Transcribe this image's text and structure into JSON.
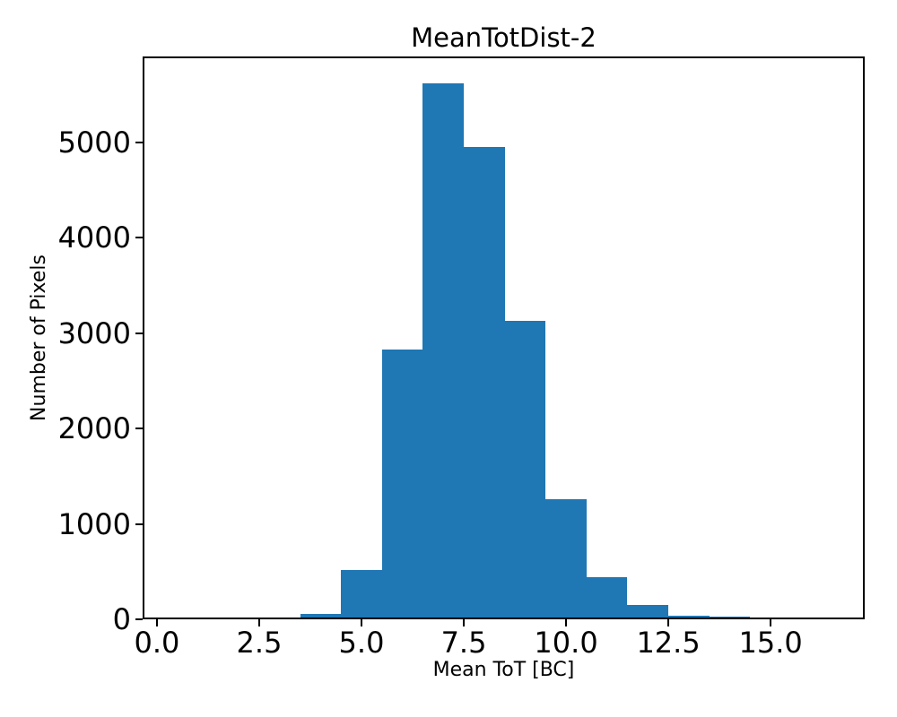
{
  "figure": {
    "background": "#ffffff",
    "text_color": "#000000"
  },
  "chart_data": {
    "type": "bar",
    "title": "MeanTotDist-2",
    "xlabel": "Mean ToT [BC]",
    "ylabel": "Number of Pixels",
    "bar_color": "#1f77b4",
    "grid": false,
    "legend_position": "none",
    "bin_edges": [
      1.5,
      2.5,
      3.5,
      4.5,
      5.5,
      6.5,
      7.5,
      8.5,
      9.5,
      10.5,
      11.5,
      12.5,
      13.5,
      14.5,
      15.5
    ],
    "values": [
      20,
      22,
      60,
      520,
      2825,
      5620,
      4950,
      3130,
      1255,
      440,
      150,
      40,
      30,
      15
    ],
    "xlim": [
      -0.35,
      17.3
    ],
    "ylim": [
      0,
      5900
    ],
    "xticks": [
      0,
      2.5,
      5,
      7.5,
      10,
      12.5,
      15
    ],
    "xtick_labels": [
      "0.0",
      "2.5",
      "5.0",
      "7.5",
      "10.0",
      "12.5",
      "15.0"
    ],
    "yticks": [
      0,
      1000,
      2000,
      3000,
      4000,
      5000
    ],
    "ytick_labels": [
      "0",
      "1000",
      "2000",
      "3000",
      "4000",
      "5000"
    ]
  }
}
